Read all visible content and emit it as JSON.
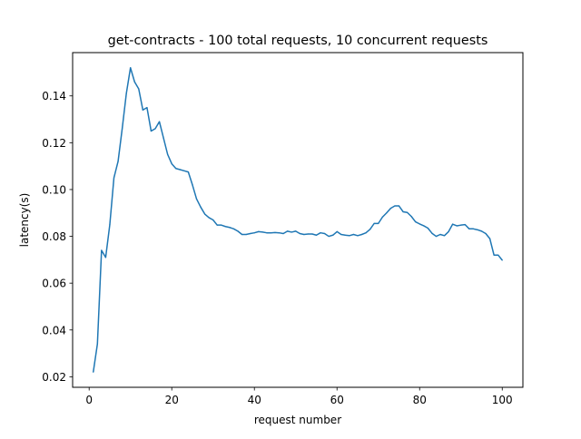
{
  "chart_data": {
    "type": "line",
    "title": "get-contracts - 100 total requests, 10 concurrent requests",
    "xlabel": "request number",
    "ylabel": "latency(s)",
    "xlim": [
      -4,
      105
    ],
    "ylim": [
      0.0155,
      0.1585
    ],
    "xticks": [
      0,
      20,
      40,
      60,
      80,
      100
    ],
    "yticks": [
      0.02,
      0.04,
      0.06,
      0.08,
      0.1,
      0.12,
      0.14
    ],
    "ytick_labels": [
      "0.02",
      "0.04",
      "0.06",
      "0.08",
      "0.10",
      "0.12",
      "0.14"
    ],
    "grid": false,
    "line_color": "#1f77b4",
    "series": [
      {
        "x": [
          1,
          2,
          3,
          4,
          5,
          6,
          7,
          8,
          9,
          10,
          11,
          12,
          13,
          14,
          15,
          16,
          17,
          18,
          19,
          20,
          21,
          22,
          23,
          24,
          25,
          26,
          27,
          28,
          29,
          30,
          31,
          32,
          33,
          34,
          35,
          36,
          37,
          38,
          39,
          40,
          41,
          42,
          43,
          44,
          45,
          46,
          47,
          48,
          49,
          50,
          51,
          52,
          53,
          54,
          55,
          56,
          57,
          58,
          59,
          60,
          61,
          62,
          63,
          64,
          65,
          66,
          67,
          68,
          69,
          70,
          71,
          72,
          73,
          74,
          75,
          76,
          77,
          78,
          79,
          80,
          81,
          82,
          83,
          84,
          85,
          86,
          87,
          88,
          89,
          90,
          91,
          92,
          93,
          94,
          95,
          96,
          97,
          98,
          99,
          100
        ],
        "y": [
          0.022,
          0.034,
          0.074,
          0.071,
          0.085,
          0.105,
          0.112,
          0.126,
          0.141,
          0.152,
          0.146,
          0.143,
          0.134,
          0.135,
          0.125,
          0.126,
          0.129,
          0.122,
          0.115,
          0.111,
          0.109,
          0.1085,
          0.108,
          0.1075,
          0.102,
          0.096,
          0.0925,
          0.0895,
          0.088,
          0.087,
          0.0848,
          0.0848,
          0.0842,
          0.0838,
          0.0832,
          0.0822,
          0.0808,
          0.0808,
          0.0812,
          0.0815,
          0.082,
          0.0818,
          0.0815,
          0.0815,
          0.0816,
          0.0815,
          0.0812,
          0.0822,
          0.0818,
          0.0822,
          0.0812,
          0.0808,
          0.081,
          0.081,
          0.0805,
          0.0815,
          0.0812,
          0.08,
          0.0805,
          0.082,
          0.0808,
          0.0805,
          0.0803,
          0.0808,
          0.0803,
          0.0808,
          0.0815,
          0.083,
          0.0855,
          0.0855,
          0.0882,
          0.09,
          0.092,
          0.093,
          0.093,
          0.0905,
          0.0902,
          0.0885,
          0.0862,
          0.0853,
          0.0845,
          0.0835,
          0.0813,
          0.08,
          0.0808,
          0.0803,
          0.082,
          0.0852,
          0.0845,
          0.0848,
          0.085,
          0.0832,
          0.0832,
          0.0828,
          0.0822,
          0.0812,
          0.079,
          0.072,
          0.072,
          0.0698
        ]
      }
    ]
  }
}
